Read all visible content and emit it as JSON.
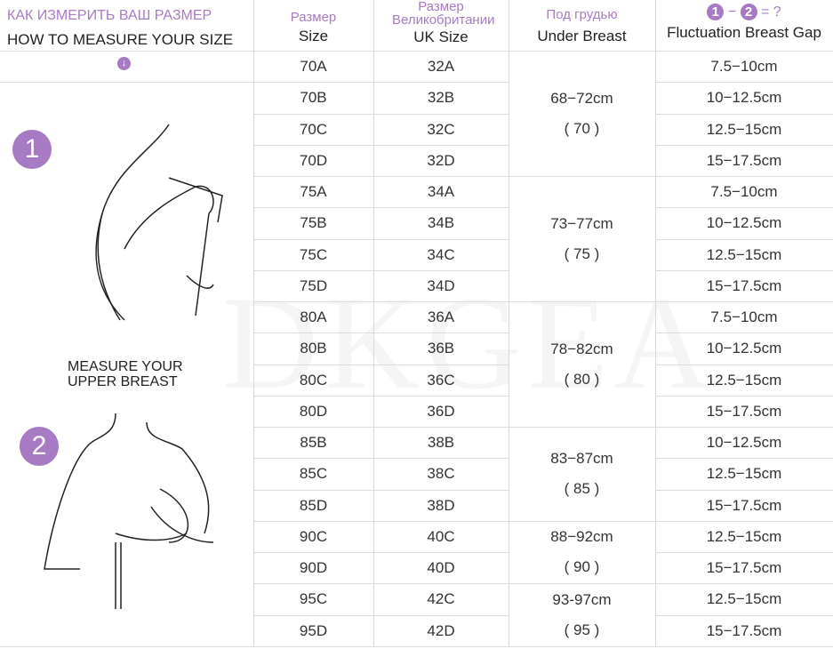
{
  "header": {
    "left_ru": "КАК ИЗМЕРИТЬ ВАШ РАЗМЕР",
    "left_en": "HOW TO MEASURE YOUR SIZE",
    "size_ru": "Размер",
    "size_en": "Size",
    "uk_ru": "Размер Великобритании",
    "uk_en": "UK Size",
    "under_ru": "Под грудью",
    "under_en": "Under Breast",
    "gap_badge1": "1",
    "gap_minus": "−",
    "gap_badge2": "2",
    "gap_eq": "= ?",
    "gap_en": "Fluctuation Breast Gap"
  },
  "left": {
    "step1": "1",
    "step2": "2",
    "upper_label_1": "MEASURE YOUR",
    "upper_label_2": "UPPER BREAST",
    "down_icon": "arrow-down-circle-icon"
  },
  "watermark": "DKGEA",
  "accent": "#a77bc3",
  "rows": [
    {
      "size": "70A",
      "uk": "32A",
      "gap": "7.5−10cm"
    },
    {
      "size": "70B",
      "uk": "32B",
      "gap": "10−12.5cm"
    },
    {
      "size": "70C",
      "uk": "32C",
      "gap": "12.5−15cm"
    },
    {
      "size": "70D",
      "uk": "32D",
      "gap": "15−17.5cm"
    },
    {
      "size": "75A",
      "uk": "34A",
      "gap": "7.5−10cm"
    },
    {
      "size": "75B",
      "uk": "34B",
      "gap": "10−12.5cm"
    },
    {
      "size": "75C",
      "uk": "34C",
      "gap": "12.5−15cm"
    },
    {
      "size": "75D",
      "uk": "34D",
      "gap": "15−17.5cm"
    },
    {
      "size": "80A",
      "uk": "36A",
      "gap": "7.5−10cm"
    },
    {
      "size": "80B",
      "uk": "36B",
      "gap": "10−12.5cm"
    },
    {
      "size": "80C",
      "uk": "36C",
      "gap": "12.5−15cm"
    },
    {
      "size": "80D",
      "uk": "36D",
      "gap": "15−17.5cm"
    },
    {
      "size": "85B",
      "uk": "38B",
      "gap": "10−12.5cm"
    },
    {
      "size": "85C",
      "uk": "38C",
      "gap": "12.5−15cm"
    },
    {
      "size": "85D",
      "uk": "38D",
      "gap": "15−17.5cm"
    },
    {
      "size": "90C",
      "uk": "40C",
      "gap": "12.5−15cm"
    },
    {
      "size": "90D",
      "uk": "40D",
      "gap": "15−17.5cm"
    },
    {
      "size": "95C",
      "uk": "42C",
      "gap": "12.5−15cm"
    },
    {
      "size": "95D",
      "uk": "42D",
      "gap": "15−17.5cm"
    }
  ],
  "under_groups": [
    {
      "range": "68−72cm",
      "value": "( 70 )",
      "rows": 4
    },
    {
      "range": "73−77cm",
      "value": "( 75 )",
      "rows": 4
    },
    {
      "range": "78−82cm",
      "value": "( 80 )",
      "rows": 4
    },
    {
      "range": "83−87cm",
      "value": "( 85 )",
      "rows": 3
    },
    {
      "range": "88−92cm",
      "value": "( 90 )",
      "rows": 2
    },
    {
      "range": "93-97cm",
      "value": "( 95 )",
      "rows": 2
    }
  ]
}
